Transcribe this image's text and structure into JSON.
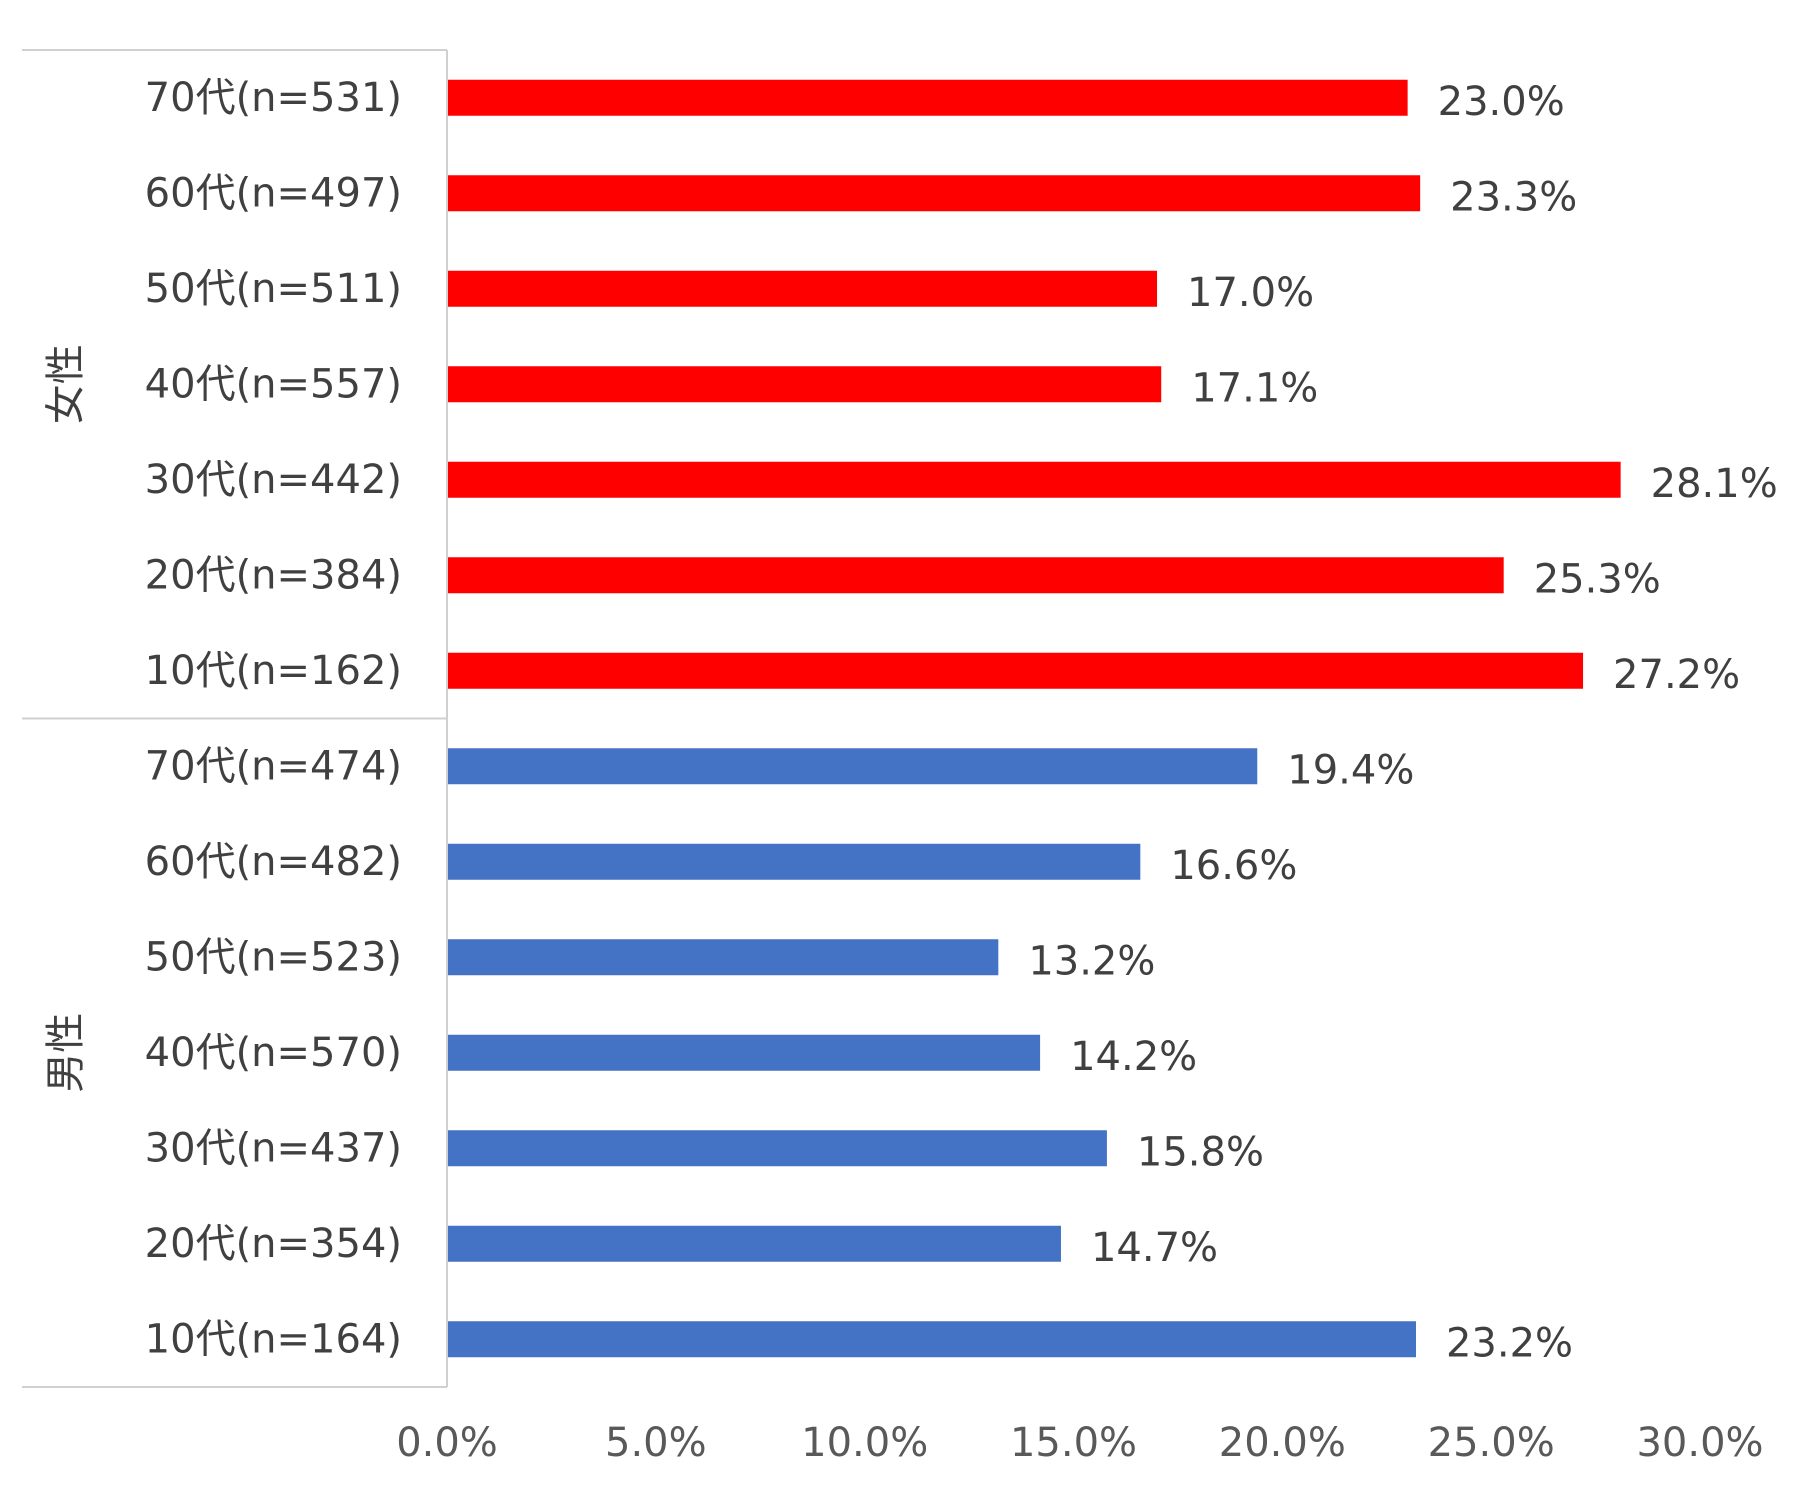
{
  "chart_data": {
    "type": "bar",
    "orientation": "horizontal",
    "title": "",
    "xlabel": "",
    "ylabel": "",
    "xlim": [
      0,
      30
    ],
    "value_unit": "%",
    "x_ticks": [
      "0.0%",
      "5.0%",
      "10.0%",
      "15.0%",
      "20.0%",
      "25.0%",
      "30.0%"
    ],
    "grid": false,
    "legend": "none",
    "groups": [
      {
        "name": "女性",
        "color": "#FF0000",
        "categories": [
          "70代(n=531)",
          "60代(n=497)",
          "50代(n=511)",
          "40代(n=557)",
          "30代(n=442)",
          "20代(n=384)",
          "10代(n=162)"
        ],
        "values": [
          23.0,
          23.3,
          17.0,
          17.1,
          28.1,
          25.3,
          27.2
        ],
        "labels": [
          "23.0%",
          "23.3%",
          "17.0%",
          "17.1%",
          "28.1%",
          "25.3%",
          "27.2%"
        ]
      },
      {
        "name": "男性",
        "color": "#4472C4",
        "categories": [
          "70代(n=474)",
          "60代(n=482)",
          "50代(n=523)",
          "40代(n=570)",
          "30代(n=437)",
          "20代(n=354)",
          "10代(n=164)"
        ],
        "values": [
          19.4,
          16.6,
          13.2,
          14.2,
          15.8,
          14.7,
          23.2
        ],
        "labels": [
          "19.4%",
          "16.6%",
          "13.2%",
          "14.2%",
          "15.8%",
          "14.7%",
          "23.2%"
        ]
      }
    ]
  }
}
